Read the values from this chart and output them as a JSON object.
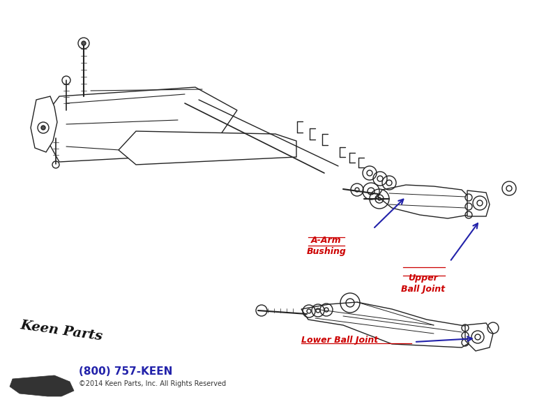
{
  "bg_color": "#ffffff",
  "label_aarm": "A-Arm\nBushing",
  "label_upper": "Upper\nBall Joint",
  "label_lower": "Lower Ball Joint",
  "label_color": "#cc0000",
  "arrow_color": "#2222aa",
  "phone_text": "(800) 757-KEEN",
  "phone_color": "#2222aa",
  "copyright_text": "©2014 Keen Parts, Inc. All Rights Reserved",
  "copyright_color": "#333333",
  "fig_width": 7.7,
  "fig_height": 5.79,
  "dpi": 100
}
